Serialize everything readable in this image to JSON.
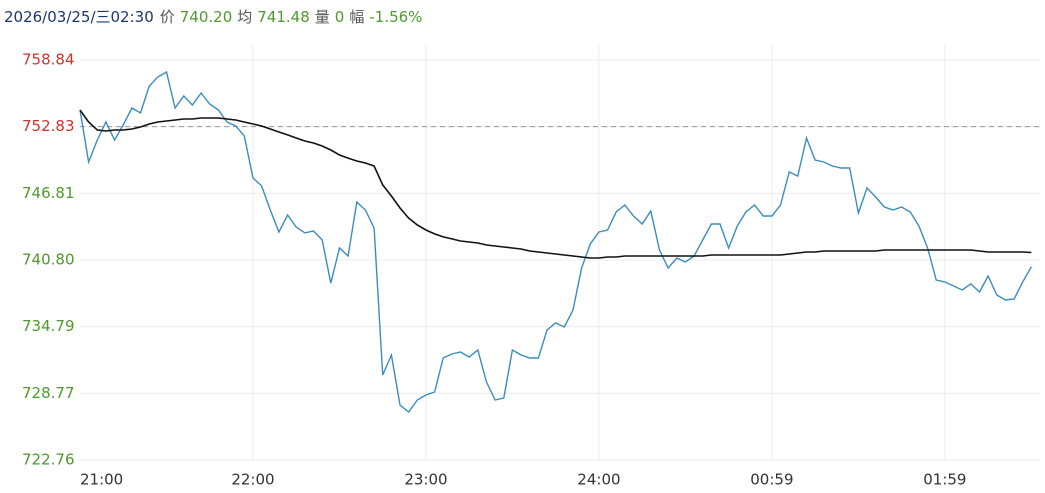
{
  "header": {
    "datetime": "2026/03/25/三02:30",
    "price_label": "价",
    "price": "740.20",
    "avg_label": "均",
    "avg": "741.48",
    "vol_label": "量",
    "vol": "0",
    "range_label": "幅",
    "range": "-1.56%"
  },
  "chart_data": {
    "type": "line",
    "x": [
      0,
      3,
      6,
      9,
      12,
      15,
      18,
      21,
      24,
      27,
      30,
      33,
      36,
      39,
      42,
      45,
      48,
      51,
      54,
      57,
      60,
      63,
      66,
      69,
      72,
      75,
      78,
      81,
      84,
      87,
      90,
      93,
      96,
      99,
      102,
      105,
      108,
      111,
      114,
      117,
      120,
      123,
      126,
      129,
      132,
      135,
      138,
      141,
      144,
      147,
      150,
      153,
      156,
      159,
      162,
      165,
      168,
      171,
      174,
      177,
      180,
      183,
      186,
      189,
      192,
      195,
      198,
      201,
      204,
      207,
      210,
      213,
      216,
      219,
      222,
      225,
      228,
      231,
      234,
      237,
      240,
      243,
      246,
      249,
      252,
      255,
      258,
      261,
      264,
      267,
      270,
      273,
      276,
      279,
      282,
      285,
      288,
      291,
      294,
      297,
      300,
      303,
      306,
      309,
      312,
      315,
      318,
      321,
      324,
      327,
      330
    ],
    "series": [
      {
        "color": "#3b8dbf",
        "values": [
          754.33,
          749.64,
          751.62,
          753.25,
          751.62,
          752.98,
          754.51,
          754.06,
          756.49,
          757.31,
          757.76,
          754.51,
          755.59,
          754.78,
          755.86,
          754.87,
          754.33,
          753.25,
          752.89,
          751.99,
          748.2,
          747.48,
          745.31,
          743.33,
          744.86,
          743.78,
          743.24,
          743.42,
          742.6,
          738.72,
          741.88,
          741.16,
          746.03,
          745.31,
          743.69,
          730.43,
          732.23,
          727.72,
          727.09,
          728.17,
          728.62,
          728.89,
          731.96,
          732.32,
          732.5,
          732.05,
          732.68,
          729.8,
          728.17,
          728.35,
          732.68,
          732.23,
          731.96,
          731.96,
          734.49,
          735.12,
          734.76,
          736.29,
          740.08,
          742.24,
          743.33,
          743.51,
          745.13,
          745.76,
          744.77,
          744.05,
          745.22,
          741.7,
          740.08,
          740.98,
          740.62,
          741.16,
          742.6,
          744.05,
          744.05,
          741.88,
          743.87,
          745.13,
          745.76,
          744.77,
          744.77,
          745.76,
          748.74,
          748.38,
          751.8,
          749.82,
          749.64,
          749.28,
          749.1,
          749.1,
          745.04,
          747.3,
          746.48,
          745.58,
          745.31,
          745.58,
          745.13,
          743.87,
          741.88,
          739.0,
          738.82,
          738.46,
          738.09,
          738.64,
          737.91,
          739.36,
          737.64,
          737.19,
          737.28,
          738.82,
          740.2
        ]
      },
      {
        "color": "#111111",
        "values": [
          754.33,
          753.25,
          752.53,
          752.44,
          752.53,
          752.53,
          752.62,
          752.8,
          753.07,
          753.25,
          753.34,
          753.43,
          753.52,
          753.52,
          753.61,
          753.61,
          753.61,
          753.52,
          753.43,
          753.25,
          753.07,
          752.89,
          752.62,
          752.35,
          752.08,
          751.8,
          751.53,
          751.35,
          751.08,
          750.72,
          750.27,
          749.99,
          749.73,
          749.55,
          749.28,
          747.57,
          746.57,
          745.49,
          744.59,
          743.96,
          743.51,
          743.15,
          742.88,
          742.7,
          742.51,
          742.42,
          742.33,
          742.15,
          742.06,
          741.97,
          741.88,
          741.79,
          741.61,
          741.52,
          741.43,
          741.34,
          741.25,
          741.16,
          741.07,
          740.98,
          740.98,
          741.07,
          741.07,
          741.16,
          741.16,
          741.16,
          741.16,
          741.16,
          741.16,
          741.16,
          741.16,
          741.16,
          741.16,
          741.25,
          741.25,
          741.25,
          741.25,
          741.25,
          741.25,
          741.25,
          741.25,
          741.25,
          741.34,
          741.43,
          741.52,
          741.52,
          741.61,
          741.61,
          741.61,
          741.61,
          741.61,
          741.61,
          741.61,
          741.7,
          741.7,
          741.7,
          741.7,
          741.7,
          741.7,
          741.7,
          741.7,
          741.7,
          741.7,
          741.7,
          741.61,
          741.52,
          741.52,
          741.52,
          741.52,
          741.52,
          741.48
        ]
      }
    ],
    "xlim": [
      0,
      333
    ],
    "xticks": [
      {
        "value": 0,
        "label": "21:00"
      },
      {
        "value": 60,
        "label": "22:00"
      },
      {
        "value": 120,
        "label": "23:00"
      },
      {
        "value": 180,
        "label": "24:00"
      },
      {
        "value": 240,
        "label": "00:59"
      },
      {
        "value": 300,
        "label": "01:59"
      }
    ],
    "ylim": [
      722.76,
      758.84
    ],
    "yticks": [
      722.76,
      728.77,
      734.79,
      740.8,
      746.81,
      752.83,
      758.84
    ],
    "ytick_labels": [
      "722.76",
      "728.77",
      "734.79",
      "740.80",
      "746.81",
      "752.83",
      "758.84"
    ],
    "reference": 752.83,
    "up_color": "#d0342c",
    "down_color": "#4e9a2c",
    "grid": true
  }
}
